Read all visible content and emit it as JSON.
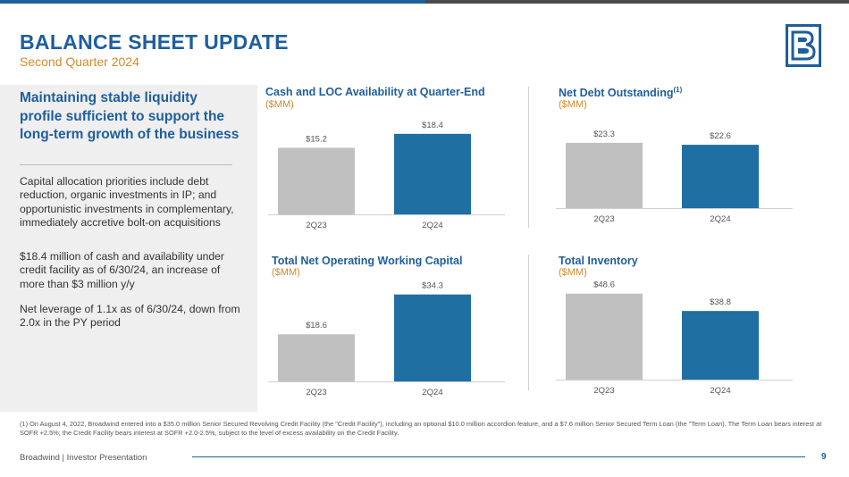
{
  "header": {
    "title": "BALANCE SHEET UPDATE",
    "subtitle": "Second Quarter 2024"
  },
  "colors": {
    "brand_blue": "#1f5e9c",
    "bar_blue": "#1f6fa3",
    "bar_grey": "#c0c0c0",
    "accent_orange": "#d4892a"
  },
  "left_panel": {
    "heading": "Maintaining stable liquidity profile sufficient to support the long-term growth of the business",
    "paragraphs": [
      "Capital allocation priorities include debt reduction, organic investments in IP; and opportunistic investments in complementary, immediately accretive bolt-on acquisitions",
      "$18.4 million of cash and availability under credit facility as of 6/30/24, an increase of more than $3 million y/y",
      "Net leverage of 1.1x as of 6/30/24, down from 2.0x in the PY period"
    ]
  },
  "chart_data": [
    {
      "type": "bar",
      "title": "Cash and  LOC Availability at Quarter-End",
      "unit": "($MM)",
      "categories": [
        "2Q23",
        "2Q24"
      ],
      "values": [
        15.2,
        18.4
      ],
      "labels": [
        "$15.2",
        "$18.4"
      ],
      "ylim": [
        0,
        20
      ]
    },
    {
      "type": "bar",
      "title": "Net Debt Outstanding",
      "title_sup": "(1)",
      "unit": "($MM)",
      "categories": [
        "2Q23",
        "2Q24"
      ],
      "values": [
        23.3,
        22.6
      ],
      "labels": [
        "$23.3",
        "$22.6"
      ],
      "ylim": [
        0,
        29
      ]
    },
    {
      "type": "bar",
      "title": "Total Net Operating Working Capital",
      "unit": "($MM)",
      "categories": [
        "2Q23",
        "2Q24"
      ],
      "values": [
        18.6,
        34.3
      ],
      "labels": [
        "$18.6",
        "$34.3"
      ],
      "ylim": [
        0,
        37
      ]
    },
    {
      "type": "bar",
      "title": "Total Inventory",
      "unit": "($MM)",
      "categories": [
        "2Q23",
        "2Q24"
      ],
      "values": [
        48.6,
        38.8
      ],
      "labels": [
        "$48.6",
        "$38.8"
      ],
      "ylim": [
        0,
        52
      ]
    }
  ],
  "footnote": "(1) On August 4, 2022, Broadwind entered into a $35.0 million Senior Secured Revolving Credit Facility (the \"Credit Facility\"), including an optional $10.0 million accordion feature, and a $7.6 million Senior Secured Term Loan (the \"Term Loan). The Term Loan bears interest at SOFR +2.5%; the Credit Facility bears interest at SOFR +2.0-2.5%, subject to the level of excess availability on the Credit Facility.",
  "footer": {
    "text": "Broadwind  | Investor Presentation",
    "page": "9"
  }
}
